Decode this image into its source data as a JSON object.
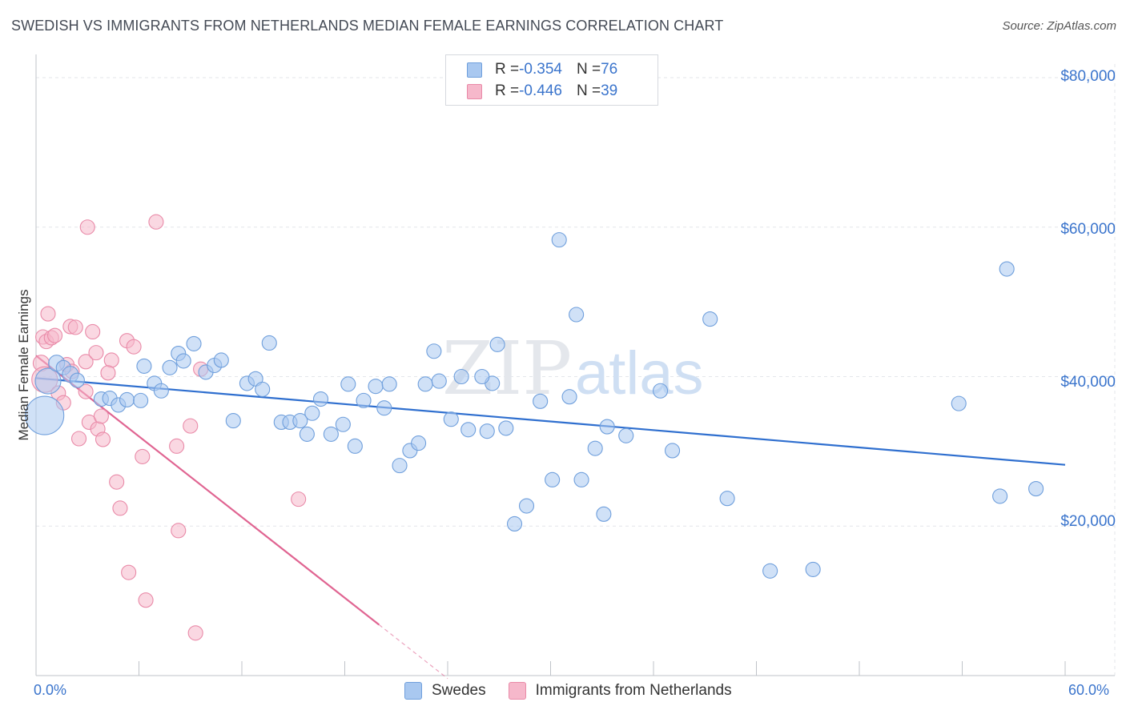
{
  "header": {
    "title": "SWEDISH VS IMMIGRANTS FROM NETHERLANDS MEDIAN FEMALE EARNINGS CORRELATION CHART",
    "source": "Source: ZipAtlas.com"
  },
  "watermark": {
    "part1": "ZIP",
    "part2": "atlas"
  },
  "legend_top": [
    {
      "r_label": "R = ",
      "r_value": "-0.354",
      "n_label": "N = ",
      "n_value": "76",
      "color": "#a9c8f0"
    },
    {
      "r_label": "R = ",
      "r_value": "-0.446",
      "n_label": "N = ",
      "n_value": "39",
      "color": "#f6b8cb"
    }
  ],
  "legend_bottom": [
    {
      "label": "Swedes",
      "color": "#a9c8f0"
    },
    {
      "label": "Immigrants from Netherlands",
      "color": "#f6b8cb"
    }
  ],
  "axis": {
    "x_min_label": "0.0%",
    "x_max_label": "60.0%",
    "y_ticks": [
      "$20,000",
      "$40,000",
      "$60,000",
      "$80,000"
    ]
  },
  "colors": {
    "blue_fill": "#a9c8f0",
    "blue_stroke": "#6f9fdc",
    "blue_line": "#2f6fcf",
    "pink_fill": "#f6b8cb",
    "pink_stroke": "#e98aa8",
    "pink_line": "#e06592",
    "accent_text": "#3a74cc"
  },
  "chart_data": {
    "type": "scatter",
    "title": "SWEDISH VS IMMIGRANTS FROM NETHERLANDS MEDIAN FEMALE EARNINGS CORRELATION CHART",
    "xlabel": "",
    "ylabel": "Median Female Earnings",
    "xlim": [
      0,
      60
    ],
    "ylim": [
      0,
      80000
    ],
    "x_unit": "%",
    "grid": true,
    "legend_position": "top-center",
    "series": [
      {
        "name": "Swedes",
        "color": "#a9c8f0",
        "trend": {
          "x": [
            0,
            60
          ],
          "y": [
            39800,
            28200
          ],
          "R": -0.354,
          "N": 76
        },
        "points": [
          [
            0.5,
            34800,
            24
          ],
          [
            0.7,
            39400,
            16
          ],
          [
            1.2,
            41800,
            10
          ],
          [
            1.6,
            41200,
            9
          ],
          [
            2.0,
            40300,
            10
          ],
          [
            2.4,
            39500,
            9
          ],
          [
            3.8,
            37000,
            9
          ],
          [
            4.3,
            37100,
            9
          ],
          [
            4.8,
            36200,
            9
          ],
          [
            5.3,
            36900,
            9
          ],
          [
            6.1,
            36800,
            9
          ],
          [
            6.3,
            41400,
            9
          ],
          [
            6.9,
            39100,
            9
          ],
          [
            7.3,
            38100,
            9
          ],
          [
            7.8,
            41200,
            9
          ],
          [
            8.3,
            43100,
            9
          ],
          [
            8.6,
            42100,
            9
          ],
          [
            9.2,
            44400,
            9
          ],
          [
            9.9,
            40600,
            9
          ],
          [
            10.4,
            41500,
            9
          ],
          [
            10.8,
            42200,
            9
          ],
          [
            11.5,
            34100,
            9
          ],
          [
            12.3,
            39100,
            9
          ],
          [
            12.8,
            39700,
            9
          ],
          [
            13.2,
            38300,
            9
          ],
          [
            13.6,
            44500,
            9
          ],
          [
            14.3,
            33900,
            9
          ],
          [
            14.8,
            33900,
            9
          ],
          [
            15.4,
            34100,
            9
          ],
          [
            15.8,
            32300,
            9
          ],
          [
            16.1,
            35100,
            9
          ],
          [
            16.6,
            37000,
            9
          ],
          [
            17.2,
            32300,
            9
          ],
          [
            17.9,
            33600,
            9
          ],
          [
            18.2,
            39000,
            9
          ],
          [
            18.6,
            30700,
            9
          ],
          [
            19.1,
            36800,
            9
          ],
          [
            19.8,
            38700,
            9
          ],
          [
            20.3,
            35800,
            9
          ],
          [
            20.6,
            39000,
            9
          ],
          [
            21.2,
            28100,
            9
          ],
          [
            21.8,
            30100,
            9
          ],
          [
            22.3,
            31100,
            9
          ],
          [
            22.7,
            39000,
            9
          ],
          [
            23.2,
            43400,
            9
          ],
          [
            23.5,
            39400,
            9
          ],
          [
            24.2,
            34300,
            9
          ],
          [
            24.8,
            40000,
            9
          ],
          [
            25.2,
            32900,
            9
          ],
          [
            26.3,
            32700,
            9
          ],
          [
            26.6,
            39100,
            9
          ],
          [
            26.9,
            44300,
            9
          ],
          [
            27.4,
            33100,
            9
          ],
          [
            27.9,
            20300,
            9
          ],
          [
            28.6,
            22700,
            9
          ],
          [
            29.4,
            36700,
            9
          ],
          [
            30.1,
            26200,
            9
          ],
          [
            30.5,
            58300,
            9
          ],
          [
            31.1,
            37300,
            9
          ],
          [
            31.5,
            48300,
            9
          ],
          [
            31.8,
            26200,
            9
          ],
          [
            32.6,
            30400,
            9
          ],
          [
            33.1,
            21600,
            9
          ],
          [
            33.3,
            33300,
            9
          ],
          [
            34.4,
            32100,
            9
          ],
          [
            36.4,
            38100,
            9
          ],
          [
            37.1,
            30100,
            9
          ],
          [
            39.3,
            47700,
            9
          ],
          [
            40.3,
            23700,
            9
          ],
          [
            42.8,
            14000,
            9
          ],
          [
            45.3,
            14200,
            9
          ],
          [
            53.8,
            36400,
            9
          ],
          [
            56.2,
            24000,
            9
          ],
          [
            56.6,
            54400,
            9
          ],
          [
            58.3,
            25000,
            9
          ],
          [
            26.0,
            40000,
            9
          ]
        ]
      },
      {
        "name": "Immigrants from Netherlands",
        "color": "#f6b8cb",
        "trend": {
          "x": [
            0,
            20
          ],
          "y": [
            42800,
            6800
          ],
          "x_dashed_end": 24,
          "R": -0.446,
          "N": 39
        },
        "points": [
          [
            0.3,
            41800,
            10
          ],
          [
            0.4,
            45300,
            9
          ],
          [
            0.5,
            39600,
            16
          ],
          [
            0.6,
            44700,
            9
          ],
          [
            0.7,
            48400,
            9
          ],
          [
            0.9,
            45200,
            9
          ],
          [
            1.1,
            45500,
            9
          ],
          [
            1.3,
            37800,
            9
          ],
          [
            1.6,
            36500,
            9
          ],
          [
            1.8,
            41600,
            9
          ],
          [
            2.0,
            46700,
            9
          ],
          [
            2.1,
            40700,
            9
          ],
          [
            2.3,
            46600,
            9
          ],
          [
            2.5,
            31700,
            9
          ],
          [
            2.9,
            42000,
            9
          ],
          [
            2.9,
            38000,
            9
          ],
          [
            3.1,
            33900,
            9
          ],
          [
            3.3,
            46000,
            9
          ],
          [
            3.5,
            43200,
            9
          ],
          [
            3.6,
            33000,
            9
          ],
          [
            3.8,
            34700,
            9
          ],
          [
            3.9,
            31600,
            9
          ],
          [
            3.0,
            60000,
            9
          ],
          [
            4.4,
            42200,
            9
          ],
          [
            4.7,
            25900,
            9
          ],
          [
            4.9,
            22400,
            9
          ],
          [
            5.3,
            44800,
            9
          ],
          [
            5.7,
            44000,
            9
          ],
          [
            5.4,
            13800,
            9
          ],
          [
            6.2,
            29300,
            9
          ],
          [
            6.4,
            10100,
            9
          ],
          [
            7.0,
            60700,
            9
          ],
          [
            8.2,
            30700,
            9
          ],
          [
            8.3,
            19400,
            9
          ],
          [
            9.0,
            33400,
            9
          ],
          [
            9.3,
            5700,
            9
          ],
          [
            9.6,
            41000,
            9
          ],
          [
            15.3,
            23600,
            9
          ],
          [
            4.2,
            40500,
            9
          ]
        ]
      }
    ]
  }
}
